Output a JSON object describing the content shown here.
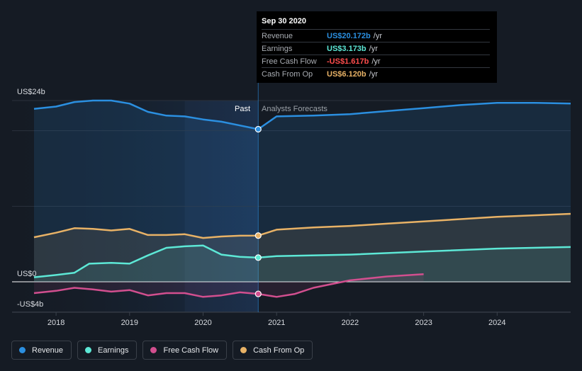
{
  "chart_data": {
    "type": "line",
    "y_axis": {
      "min": -4,
      "max": 24,
      "unit": "US$ billions",
      "labels": {
        "top": "US$24b",
        "zero": "US$0",
        "bottom": "-US$4b"
      }
    },
    "x_axis": {
      "min": 2017.7,
      "max": 2025.0,
      "ticks": [
        "2018",
        "2019",
        "2020",
        "2021",
        "2022",
        "2023",
        "2024"
      ]
    },
    "past_split": 2020.75,
    "region_labels": {
      "past": "Past",
      "forecast": "Analysts Forecasts"
    },
    "series": [
      {
        "name": "Revenue",
        "color": "#2b8fe0",
        "points": [
          [
            2017.7,
            22.9
          ],
          [
            2018.0,
            23.2
          ],
          [
            2018.25,
            23.8
          ],
          [
            2018.5,
            24.0
          ],
          [
            2018.75,
            24.0
          ],
          [
            2019.0,
            23.6
          ],
          [
            2019.25,
            22.5
          ],
          [
            2019.5,
            22.0
          ],
          [
            2019.75,
            21.9
          ],
          [
            2020.0,
            21.5
          ],
          [
            2020.25,
            21.2
          ],
          [
            2020.5,
            20.7
          ],
          [
            2020.75,
            20.2
          ],
          [
            2021.0,
            21.9
          ],
          [
            2021.5,
            22.0
          ],
          [
            2022.0,
            22.2
          ],
          [
            2022.5,
            22.6
          ],
          [
            2023.0,
            23.0
          ],
          [
            2023.5,
            23.4
          ],
          [
            2024.0,
            23.7
          ],
          [
            2024.5,
            23.7
          ],
          [
            2025.0,
            23.6
          ]
        ]
      },
      {
        "name": "Earnings",
        "color": "#5de8d6",
        "points": [
          [
            2017.7,
            0.6
          ],
          [
            2018.0,
            0.9
          ],
          [
            2018.25,
            1.2
          ],
          [
            2018.45,
            2.4
          ],
          [
            2018.75,
            2.5
          ],
          [
            2019.0,
            2.4
          ],
          [
            2019.25,
            3.5
          ],
          [
            2019.5,
            4.5
          ],
          [
            2019.75,
            4.7
          ],
          [
            2020.0,
            4.8
          ],
          [
            2020.25,
            3.6
          ],
          [
            2020.5,
            3.3
          ],
          [
            2020.75,
            3.2
          ],
          [
            2021.0,
            3.4
          ],
          [
            2022.0,
            3.6
          ],
          [
            2023.0,
            4.0
          ],
          [
            2024.0,
            4.4
          ],
          [
            2025.0,
            4.6
          ]
        ]
      },
      {
        "name": "Free Cash Flow",
        "color": "#d24f8f",
        "points": [
          [
            2017.7,
            -1.5
          ],
          [
            2018.0,
            -1.2
          ],
          [
            2018.25,
            -0.8
          ],
          [
            2018.5,
            -1.0
          ],
          [
            2018.75,
            -1.3
          ],
          [
            2019.0,
            -1.1
          ],
          [
            2019.25,
            -1.8
          ],
          [
            2019.5,
            -1.5
          ],
          [
            2019.75,
            -1.5
          ],
          [
            2020.0,
            -2.0
          ],
          [
            2020.25,
            -1.8
          ],
          [
            2020.5,
            -1.4
          ],
          [
            2020.75,
            -1.6
          ],
          [
            2021.0,
            -2.0
          ],
          [
            2021.25,
            -1.6
          ],
          [
            2021.5,
            -0.8
          ],
          [
            2022.0,
            0.2
          ],
          [
            2022.5,
            0.7
          ],
          [
            2023.0,
            1.0
          ]
        ]
      },
      {
        "name": "Cash From Op",
        "color": "#e8b266",
        "points": [
          [
            2017.7,
            5.9
          ],
          [
            2018.0,
            6.5
          ],
          [
            2018.25,
            7.1
          ],
          [
            2018.5,
            7.0
          ],
          [
            2018.75,
            6.8
          ],
          [
            2019.0,
            7.0
          ],
          [
            2019.25,
            6.2
          ],
          [
            2019.5,
            6.2
          ],
          [
            2019.75,
            6.3
          ],
          [
            2020.0,
            5.8
          ],
          [
            2020.25,
            6.0
          ],
          [
            2020.5,
            6.1
          ],
          [
            2020.75,
            6.12
          ],
          [
            2021.0,
            6.9
          ],
          [
            2021.5,
            7.2
          ],
          [
            2022.0,
            7.4
          ],
          [
            2022.5,
            7.7
          ],
          [
            2023.0,
            8.0
          ],
          [
            2023.5,
            8.3
          ],
          [
            2024.0,
            8.6
          ],
          [
            2024.5,
            8.8
          ],
          [
            2025.0,
            9.0
          ]
        ]
      }
    ]
  },
  "tooltip": {
    "date": "Sep 30 2020",
    "rows": [
      {
        "label": "Revenue",
        "value": "US$20.172b",
        "unit": "/yr",
        "color": "#2b8fe0"
      },
      {
        "label": "Earnings",
        "value": "US$3.173b",
        "unit": "/yr",
        "color": "#5de8d6"
      },
      {
        "label": "Free Cash Flow",
        "value": "-US$1.617b",
        "unit": "/yr",
        "color": "#ff4d4d"
      },
      {
        "label": "Cash From Op",
        "value": "US$6.120b",
        "unit": "/yr",
        "color": "#e8b266"
      }
    ]
  },
  "legend": [
    {
      "label": "Revenue",
      "color": "#2b8fe0"
    },
    {
      "label": "Earnings",
      "color": "#5de8d6"
    },
    {
      "label": "Free Cash Flow",
      "color": "#d24f8f"
    },
    {
      "label": "Cash From Op",
      "color": "#e8b266"
    }
  ]
}
